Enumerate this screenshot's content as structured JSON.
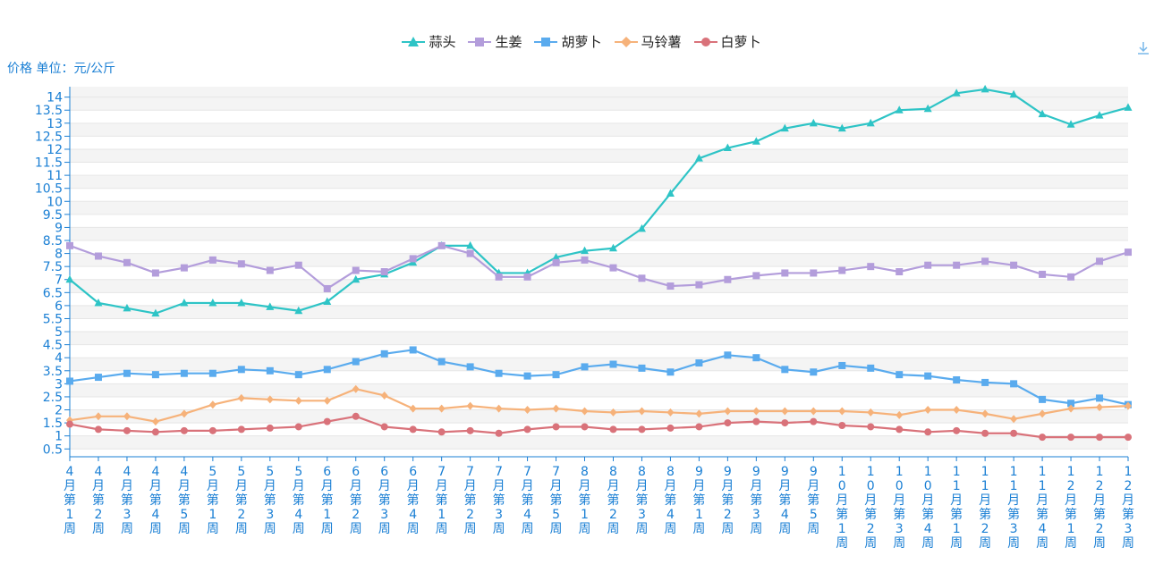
{
  "chart_data": {
    "type": "line",
    "unit_label": "价格 单位：元/公斤",
    "ylim": [
      0.2,
      14.4
    ],
    "y_ticks": [
      "0.5",
      "1",
      "1.5",
      "2",
      "2.5",
      "3",
      "3.5",
      "4",
      "4.5",
      "5",
      "5.5",
      "6",
      "6.5",
      "7",
      "7.5",
      "8",
      "8.5",
      "9",
      "9.5",
      "10",
      "10.5",
      "11",
      "11.5",
      "12",
      "12.5",
      "13",
      "13.5",
      "14"
    ],
    "categories": [
      "4月第1周",
      "4月第2周",
      "4月第3周",
      "4月第4周",
      "4月第5周",
      "5月第1周",
      "5月第2周",
      "5月第3周",
      "5月第4周",
      "6月第1周",
      "6月第2周",
      "6月第3周",
      "6月第4周",
      "7月第1周",
      "7月第2周",
      "7月第3周",
      "7月第4周",
      "7月第5周",
      "8月第1周",
      "8月第2周",
      "8月第3周",
      "8月第4周",
      "9月第1周",
      "9月第2周",
      "9月第3周",
      "9月第4周",
      "9月第5周",
      "10月第1周",
      "10月第2周",
      "10月第3周",
      "10月第4周",
      "11月第1周",
      "11月第2周",
      "11月第3周",
      "11月第4周",
      "12月第1周",
      "12月第2周",
      "12月第3周"
    ],
    "series": [
      {
        "name": "蒜头",
        "color": "#2ec4c6",
        "marker": "triangle",
        "values": [
          7.0,
          6.1,
          5.9,
          5.7,
          6.1,
          6.1,
          6.1,
          5.95,
          5.8,
          6.15,
          7.0,
          7.2,
          7.65,
          8.3,
          8.3,
          7.25,
          7.25,
          7.85,
          8.1,
          8.2,
          8.95,
          10.3,
          11.65,
          12.05,
          12.3,
          12.8,
          13.0,
          12.8,
          13.0,
          13.5,
          13.55,
          14.15,
          14.3,
          14.1,
          13.35,
          12.95,
          13.3,
          13.6
        ]
      },
      {
        "name": "生姜",
        "color": "#b39ddb",
        "marker": "square",
        "values": [
          8.3,
          7.9,
          7.65,
          7.25,
          7.45,
          7.75,
          7.6,
          7.35,
          7.55,
          6.65,
          7.35,
          7.3,
          7.8,
          8.3,
          8.0,
          7.1,
          7.1,
          7.65,
          7.75,
          7.45,
          7.05,
          6.75,
          6.8,
          7.0,
          7.15,
          7.25,
          7.25,
          7.35,
          7.5,
          7.3,
          7.55,
          7.55,
          7.7,
          7.55,
          7.2,
          7.1,
          7.7,
          8.05
        ]
      },
      {
        "name": "胡萝卜",
        "color": "#5aabee",
        "marker": "square",
        "values": [
          3.1,
          3.25,
          3.4,
          3.35,
          3.4,
          3.4,
          3.55,
          3.5,
          3.35,
          3.55,
          3.85,
          4.15,
          4.3,
          3.85,
          3.65,
          3.4,
          3.3,
          3.35,
          3.65,
          3.75,
          3.6,
          3.45,
          3.8,
          4.1,
          4.0,
          3.55,
          3.45,
          3.7,
          3.6,
          3.35,
          3.3,
          3.15,
          3.05,
          3.0,
          2.4,
          2.25,
          2.45,
          2.2
        ]
      },
      {
        "name": "马铃薯",
        "color": "#f6b27a",
        "marker": "diamond",
        "values": [
          1.6,
          1.75,
          1.75,
          1.55,
          1.85,
          2.2,
          2.45,
          2.4,
          2.35,
          2.35,
          2.8,
          2.55,
          2.05,
          2.05,
          2.15,
          2.05,
          2.0,
          2.05,
          1.95,
          1.9,
          1.95,
          1.9,
          1.85,
          1.95,
          1.95,
          1.95,
          1.95,
          1.95,
          1.9,
          1.8,
          2.0,
          2.0,
          1.85,
          1.65,
          1.85,
          2.05,
          2.1,
          2.15
        ]
      },
      {
        "name": "白萝卜",
        "color": "#d9727a",
        "marker": "circle",
        "values": [
          1.45,
          1.25,
          1.2,
          1.15,
          1.2,
          1.2,
          1.25,
          1.3,
          1.35,
          1.55,
          1.75,
          1.35,
          1.25,
          1.15,
          1.2,
          1.1,
          1.25,
          1.35,
          1.35,
          1.25,
          1.25,
          1.3,
          1.35,
          1.5,
          1.55,
          1.5,
          1.55,
          1.4,
          1.35,
          1.25,
          1.15,
          1.2,
          1.1,
          1.1,
          0.95,
          0.95,
          0.95,
          0.95
        ]
      }
    ]
  }
}
